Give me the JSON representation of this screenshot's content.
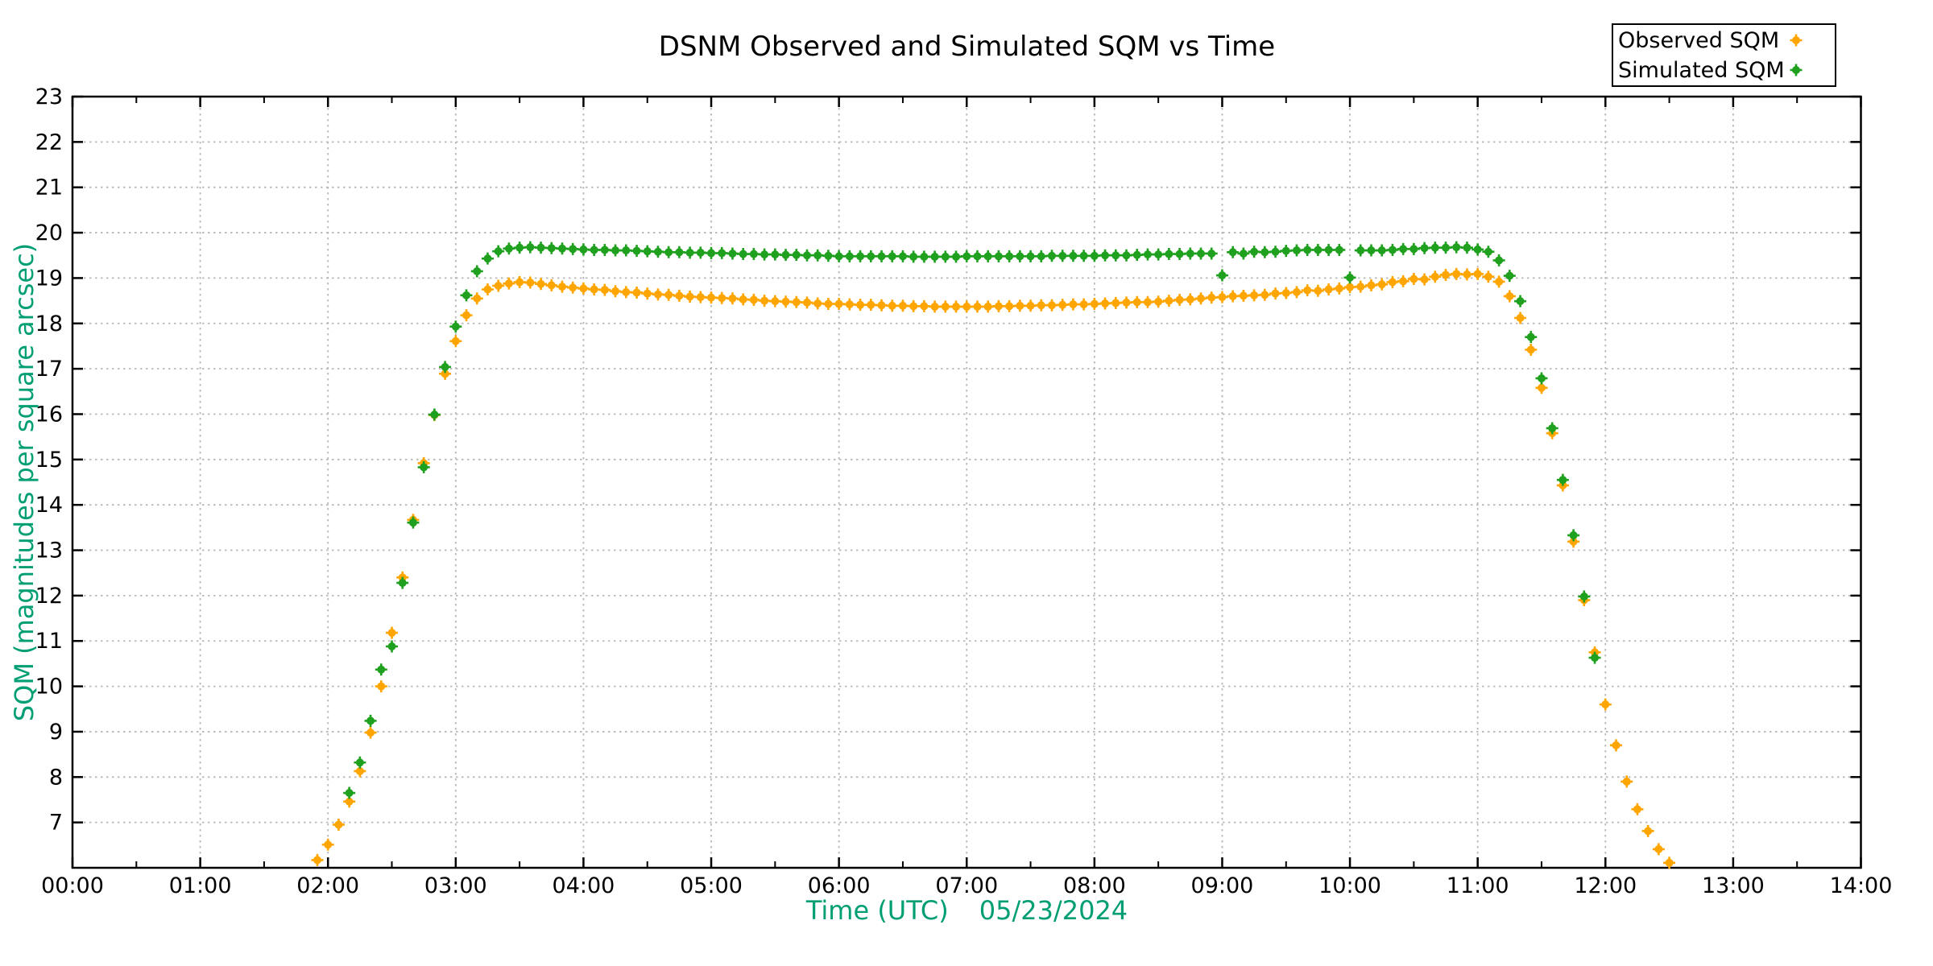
{
  "chart_data": {
    "type": "scatter",
    "title": "DSNM Observed and Simulated SQM vs Time",
    "xlabel": "Time (UTC)",
    "date_label": "05/23/2024",
    "ylabel": "SQM (magnitudes per square arcsec)",
    "axis_label_color": "#009e73",
    "grid": "dotted",
    "grid_color": "#b8b8b8",
    "x_tick_labels": [
      "00:00",
      "01:00",
      "02:00",
      "03:00",
      "04:00",
      "05:00",
      "06:00",
      "07:00",
      "08:00",
      "09:00",
      "10:00",
      "11:00",
      "12:00",
      "13:00",
      "14:00"
    ],
    "x_range_hours": [
      0,
      14
    ],
    "x_minor_tick_minutes": 30,
    "y_ticks": [
      7,
      8,
      9,
      10,
      11,
      12,
      13,
      14,
      15,
      16,
      17,
      18,
      19,
      20,
      21,
      22,
      23
    ],
    "ylim": [
      6,
      23
    ],
    "legend_position": "top-right",
    "legend": [
      {
        "label": "Observed SQM",
        "color": "#ffa500"
      },
      {
        "label": "Simulated SQM",
        "color": "#1fa01f"
      }
    ],
    "series": [
      {
        "name": "Observed SQM",
        "color": "#ffa500",
        "points": [
          [
            "01:55",
            6.17
          ],
          [
            "02:00",
            6.51
          ],
          [
            "02:05",
            6.95
          ],
          [
            "02:10",
            7.46
          ],
          [
            "02:15",
            8.13
          ],
          [
            "02:20",
            8.98
          ],
          [
            "02:25",
            10.0
          ],
          [
            "02:30",
            11.18
          ],
          [
            "02:35",
            12.4
          ],
          [
            "02:40",
            13.67
          ],
          [
            "02:45",
            14.92
          ],
          [
            "02:50",
            15.98
          ],
          [
            "02:55",
            16.89
          ],
          [
            "03:00",
            17.61
          ],
          [
            "03:05",
            18.18
          ],
          [
            "03:10",
            18.55
          ],
          [
            "03:15",
            18.75
          ],
          [
            "03:20",
            18.83
          ],
          [
            "03:25",
            18.88
          ],
          [
            "03:30",
            18.91
          ],
          [
            "03:35",
            18.9
          ],
          [
            "03:40",
            18.87
          ],
          [
            "03:45",
            18.84
          ],
          [
            "03:50",
            18.81
          ],
          [
            "03:55",
            18.79
          ],
          [
            "04:00",
            18.77
          ],
          [
            "04:05",
            18.75
          ],
          [
            "04:10",
            18.74
          ],
          [
            "04:15",
            18.71
          ],
          [
            "04:20",
            18.69
          ],
          [
            "04:25",
            18.68
          ],
          [
            "04:30",
            18.66
          ],
          [
            "04:35",
            18.64
          ],
          [
            "04:40",
            18.63
          ],
          [
            "04:45",
            18.61
          ],
          [
            "04:50",
            18.59
          ],
          [
            "04:55",
            18.58
          ],
          [
            "05:00",
            18.57
          ],
          [
            "05:05",
            18.56
          ],
          [
            "05:10",
            18.55
          ],
          [
            "05:15",
            18.53
          ],
          [
            "05:20",
            18.52
          ],
          [
            "05:25",
            18.5
          ],
          [
            "05:30",
            18.49
          ],
          [
            "05:35",
            18.48
          ],
          [
            "05:40",
            18.47
          ],
          [
            "05:45",
            18.46
          ],
          [
            "05:50",
            18.44
          ],
          [
            "05:55",
            18.43
          ],
          [
            "06:00",
            18.43
          ],
          [
            "06:05",
            18.42
          ],
          [
            "06:10",
            18.41
          ],
          [
            "06:15",
            18.41
          ],
          [
            "06:20",
            18.4
          ],
          [
            "06:25",
            18.39
          ],
          [
            "06:30",
            18.39
          ],
          [
            "06:35",
            18.38
          ],
          [
            "06:40",
            18.38
          ],
          [
            "06:45",
            18.37
          ],
          [
            "06:50",
            18.37
          ],
          [
            "06:55",
            18.37
          ],
          [
            "07:00",
            18.37
          ],
          [
            "07:05",
            18.37
          ],
          [
            "07:10",
            18.37
          ],
          [
            "07:15",
            18.38
          ],
          [
            "07:20",
            18.38
          ],
          [
            "07:25",
            18.39
          ],
          [
            "07:30",
            18.39
          ],
          [
            "07:35",
            18.4
          ],
          [
            "07:40",
            18.4
          ],
          [
            "07:45",
            18.41
          ],
          [
            "07:50",
            18.42
          ],
          [
            "07:55",
            18.42
          ],
          [
            "08:00",
            18.43
          ],
          [
            "08:05",
            18.44
          ],
          [
            "08:10",
            18.45
          ],
          [
            "08:15",
            18.46
          ],
          [
            "08:20",
            18.47
          ],
          [
            "08:25",
            18.47
          ],
          [
            "08:30",
            18.48
          ],
          [
            "08:35",
            18.5
          ],
          [
            "08:40",
            18.52
          ],
          [
            "08:45",
            18.53
          ],
          [
            "08:50",
            18.55
          ],
          [
            "08:55",
            18.57
          ],
          [
            "09:00",
            18.58
          ],
          [
            "09:05",
            18.6
          ],
          [
            "09:10",
            18.61
          ],
          [
            "09:15",
            18.62
          ],
          [
            "09:20",
            18.63
          ],
          [
            "09:25",
            18.66
          ],
          [
            "09:30",
            18.67
          ],
          [
            "09:35",
            18.69
          ],
          [
            "09:40",
            18.73
          ],
          [
            "09:45",
            18.72
          ],
          [
            "09:50",
            18.75
          ],
          [
            "09:55",
            18.77
          ],
          [
            "10:00",
            18.8
          ],
          [
            "10:05",
            18.81
          ],
          [
            "10:10",
            18.84
          ],
          [
            "10:15",
            18.86
          ],
          [
            "10:20",
            18.91
          ],
          [
            "10:25",
            18.93
          ],
          [
            "10:30",
            18.98
          ],
          [
            "10:35",
            18.97
          ],
          [
            "10:40",
            19.03
          ],
          [
            "10:45",
            19.07
          ],
          [
            "10:50",
            19.09
          ],
          [
            "10:55",
            19.08
          ],
          [
            "11:00",
            19.09
          ],
          [
            "11:05",
            19.03
          ],
          [
            "11:10",
            18.92
          ],
          [
            "11:15",
            18.6
          ],
          [
            "11:20",
            18.12
          ],
          [
            "11:25",
            17.42
          ],
          [
            "11:30",
            16.58
          ],
          [
            "11:35",
            15.58
          ],
          [
            "11:40",
            14.43
          ],
          [
            "11:45",
            13.19
          ],
          [
            "11:50",
            11.9
          ],
          [
            "11:55",
            10.75
          ],
          [
            "12:00",
            9.6
          ],
          [
            "12:05",
            8.7
          ],
          [
            "12:10",
            7.9
          ],
          [
            "12:15",
            7.29
          ],
          [
            "12:20",
            6.81
          ],
          [
            "12:25",
            6.41
          ],
          [
            "12:30",
            6.11
          ]
        ]
      },
      {
        "name": "Simulated SQM",
        "color": "#1fa01f",
        "points": [
          [
            "02:10",
            7.65
          ],
          [
            "02:15",
            8.32
          ],
          [
            "02:20",
            9.24
          ],
          [
            "02:25",
            10.37
          ],
          [
            "02:30",
            10.88
          ],
          [
            "02:35",
            12.28
          ],
          [
            "02:40",
            13.61
          ],
          [
            "02:45",
            14.83
          ],
          [
            "02:50",
            15.99
          ],
          [
            "02:55",
            17.04
          ],
          [
            "03:00",
            17.93
          ],
          [
            "03:05",
            18.62
          ],
          [
            "03:10",
            19.15
          ],
          [
            "03:15",
            19.43
          ],
          [
            "03:20",
            19.59
          ],
          [
            "03:25",
            19.65
          ],
          [
            "03:30",
            19.67
          ],
          [
            "03:35",
            19.68
          ],
          [
            "03:40",
            19.67
          ],
          [
            "03:45",
            19.66
          ],
          [
            "03:50",
            19.65
          ],
          [
            "03:55",
            19.64
          ],
          [
            "04:00",
            19.63
          ],
          [
            "04:05",
            19.62
          ],
          [
            "04:10",
            19.62
          ],
          [
            "04:15",
            19.61
          ],
          [
            "04:20",
            19.61
          ],
          [
            "04:25",
            19.6
          ],
          [
            "04:30",
            19.59
          ],
          [
            "04:35",
            19.58
          ],
          [
            "04:40",
            19.57
          ],
          [
            "04:45",
            19.57
          ],
          [
            "04:50",
            19.56
          ],
          [
            "04:55",
            19.56
          ],
          [
            "05:00",
            19.55
          ],
          [
            "05:05",
            19.55
          ],
          [
            "05:10",
            19.54
          ],
          [
            "05:15",
            19.53
          ],
          [
            "05:20",
            19.53
          ],
          [
            "05:25",
            19.52
          ],
          [
            "05:30",
            19.52
          ],
          [
            "05:35",
            19.51
          ],
          [
            "05:40",
            19.51
          ],
          [
            "05:45",
            19.5
          ],
          [
            "05:50",
            19.5
          ],
          [
            "05:55",
            19.49
          ],
          [
            "06:00",
            19.48
          ],
          [
            "06:05",
            19.48
          ],
          [
            "06:10",
            19.48
          ],
          [
            "06:15",
            19.48
          ],
          [
            "06:20",
            19.48
          ],
          [
            "06:25",
            19.48
          ],
          [
            "06:30",
            19.48
          ],
          [
            "06:35",
            19.47
          ],
          [
            "06:40",
            19.47
          ],
          [
            "06:45",
            19.47
          ],
          [
            "06:50",
            19.47
          ],
          [
            "06:55",
            19.47
          ],
          [
            "07:00",
            19.48
          ],
          [
            "07:05",
            19.48
          ],
          [
            "07:10",
            19.48
          ],
          [
            "07:15",
            19.48
          ],
          [
            "07:20",
            19.48
          ],
          [
            "07:25",
            19.48
          ],
          [
            "07:30",
            19.48
          ],
          [
            "07:35",
            19.48
          ],
          [
            "07:40",
            19.49
          ],
          [
            "07:45",
            19.49
          ],
          [
            "07:50",
            19.49
          ],
          [
            "07:55",
            19.49
          ],
          [
            "08:00",
            19.49
          ],
          [
            "08:05",
            19.5
          ],
          [
            "08:10",
            19.5
          ],
          [
            "08:15",
            19.5
          ],
          [
            "08:20",
            19.51
          ],
          [
            "08:25",
            19.52
          ],
          [
            "08:30",
            19.52
          ],
          [
            "08:35",
            19.53
          ],
          [
            "08:40",
            19.53
          ],
          [
            "08:45",
            19.54
          ],
          [
            "08:50",
            19.54
          ],
          [
            "08:55",
            19.54
          ],
          [
            "09:00",
            19.06
          ],
          [
            "09:05",
            19.57
          ],
          [
            "09:10",
            19.54
          ],
          [
            "09:15",
            19.58
          ],
          [
            "09:20",
            19.57
          ],
          [
            "09:25",
            19.58
          ],
          [
            "09:30",
            19.6
          ],
          [
            "09:35",
            19.61
          ],
          [
            "09:40",
            19.62
          ],
          [
            "09:45",
            19.62
          ],
          [
            "09:50",
            19.62
          ],
          [
            "09:55",
            19.62
          ],
          [
            "10:00",
            19.01
          ],
          [
            "10:05",
            19.61
          ],
          [
            "10:10",
            19.61
          ],
          [
            "10:15",
            19.61
          ],
          [
            "10:20",
            19.62
          ],
          [
            "10:25",
            19.64
          ],
          [
            "10:30",
            19.64
          ],
          [
            "10:35",
            19.66
          ],
          [
            "10:40",
            19.67
          ],
          [
            "10:45",
            19.67
          ],
          [
            "10:50",
            19.68
          ],
          [
            "10:55",
            19.67
          ],
          [
            "11:00",
            19.63
          ],
          [
            "11:05",
            19.58
          ],
          [
            "11:10",
            19.39
          ],
          [
            "11:15",
            19.05
          ],
          [
            "11:20",
            18.49
          ],
          [
            "11:25",
            17.7
          ],
          [
            "11:30",
            16.79
          ],
          [
            "11:35",
            15.69
          ],
          [
            "11:40",
            14.55
          ],
          [
            "11:45",
            13.33
          ],
          [
            "11:50",
            11.98
          ],
          [
            "11:55",
            10.63
          ]
        ]
      }
    ]
  }
}
